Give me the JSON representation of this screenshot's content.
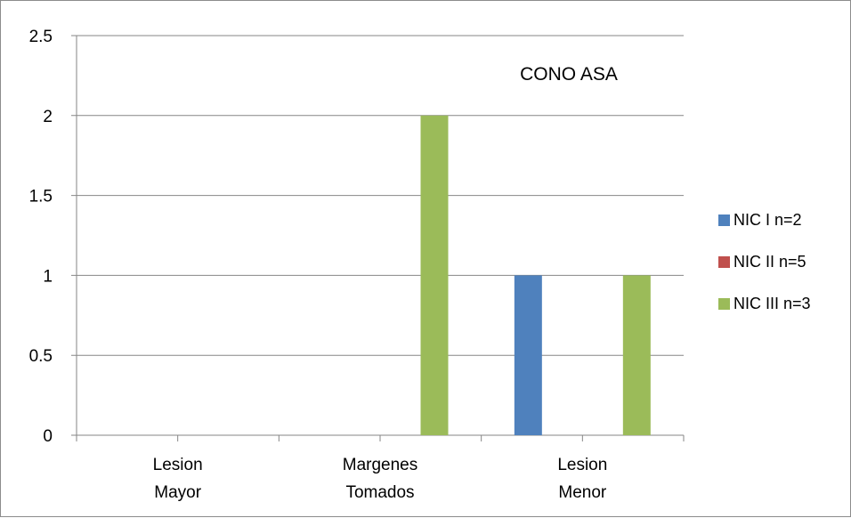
{
  "chart_data": {
    "type": "bar",
    "title": "CONO ASA",
    "categories": [
      [
        "Lesion",
        "Mayor"
      ],
      [
        "Margenes",
        "Tomados"
      ],
      [
        "Lesion",
        "Menor"
      ]
    ],
    "series": [
      {
        "name": "NIC I  n=2",
        "color": "#4f81bd",
        "values": [
          0,
          0,
          1
        ]
      },
      {
        "name": "NIC II n=5",
        "color": "#c0504d",
        "values": [
          0,
          0,
          0
        ]
      },
      {
        "name": "NIC III n=3",
        "color": "#9bbb59",
        "values": [
          0,
          2,
          1
        ]
      }
    ],
    "ylim": [
      0,
      2.5
    ],
    "yticks": [
      "0",
      "0.5",
      "1",
      "1.5",
      "2",
      "2.5"
    ],
    "grid": true,
    "legend_position": "right"
  }
}
